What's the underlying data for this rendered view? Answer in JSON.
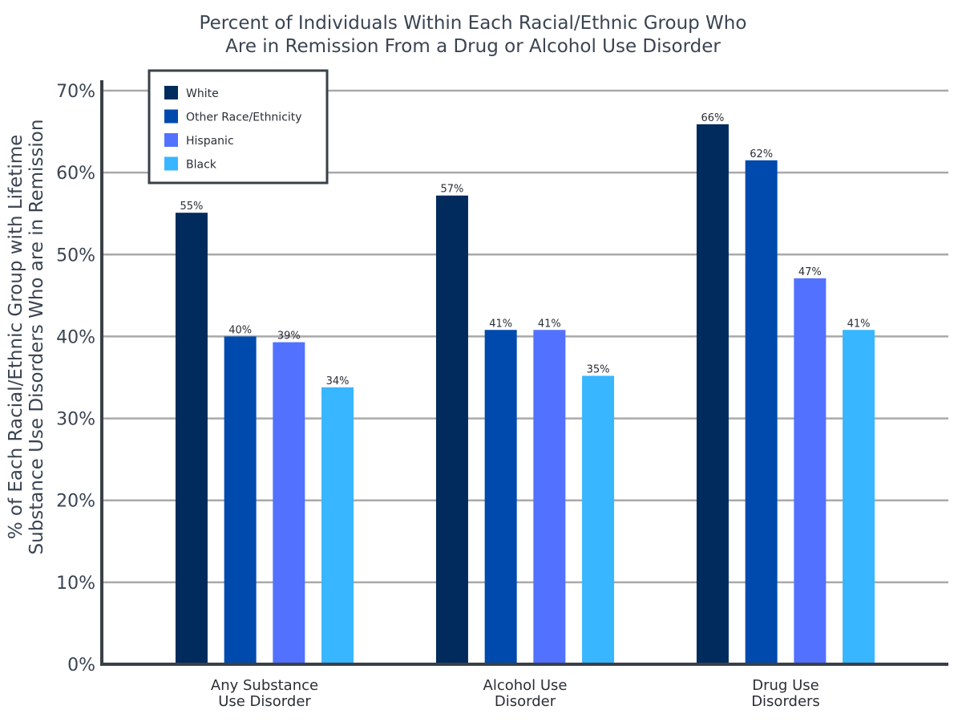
{
  "chart_data": {
    "type": "bar",
    "title_lines": [
      "Percent of Individuals Within Each Racial/Ethnic Group Who",
      "Are in Remission From a Drug or Alcohol Use Disorder"
    ],
    "ylabel_lines": [
      "% of Each Racial/Ethnic Group with Lifetime",
      "Substance Use Disorders Who are in Remission"
    ],
    "xlabel": "",
    "categories": [
      [
        "Any Substance",
        "Use Disorder"
      ],
      [
        "Alcohol Use",
        "Disorder"
      ],
      [
        "Drug Use",
        "Disorders"
      ]
    ],
    "series": [
      {
        "name": "White",
        "color": "#002B5C",
        "values": [
          55.1,
          57.2,
          65.9
        ],
        "labels": [
          "55%",
          "57%",
          "66%"
        ]
      },
      {
        "name": "Other Race/Ethnicity",
        "color": "#004AAD",
        "values": [
          40.0,
          40.8,
          61.5
        ],
        "labels": [
          "40%",
          "41%",
          "62%"
        ]
      },
      {
        "name": "Hispanic",
        "color": "#5271FF",
        "values": [
          39.3,
          40.8,
          47.1
        ],
        "labels": [
          "39%",
          "41%",
          "47%"
        ]
      },
      {
        "name": "Black",
        "color": "#38B6FF",
        "values": [
          33.8,
          35.2,
          40.8
        ],
        "labels": [
          "34%",
          "35%",
          "41%"
        ]
      }
    ],
    "ylim": [
      0,
      70
    ],
    "yticks": [
      0,
      10,
      20,
      30,
      40,
      50,
      60,
      70
    ],
    "ytick_labels": [
      "0%",
      "10%",
      "20%",
      "30%",
      "40%",
      "50%",
      "60%",
      "70%"
    ],
    "grid": true,
    "legend_position": "top-left"
  }
}
